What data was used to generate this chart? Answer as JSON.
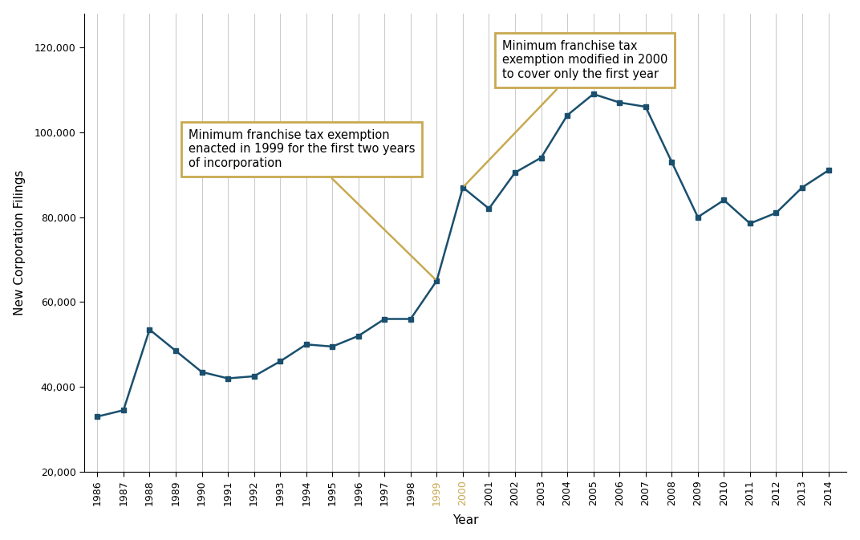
{
  "years": [
    1986,
    1987,
    1988,
    1989,
    1990,
    1991,
    1992,
    1993,
    1994,
    1995,
    1996,
    1997,
    1998,
    1999,
    2000,
    2001,
    2002,
    2003,
    2004,
    2005,
    2006,
    2007,
    2008,
    2009,
    2010,
    2011,
    2012,
    2013,
    2014
  ],
  "values": [
    33000,
    34500,
    53500,
    48500,
    43500,
    42000,
    42500,
    46000,
    50000,
    49500,
    52000,
    56000,
    56000,
    65000,
    87000,
    82000,
    90500,
    94000,
    104000,
    109000,
    107000,
    106000,
    93000,
    80000,
    84000,
    78500,
    81000,
    87000,
    91000
  ],
  "line_color": "#1a4f6e",
  "marker": "s",
  "marker_size": 4,
  "line_width": 1.8,
  "xlabel": "Year",
  "ylabel": "New Corporation Filings",
  "ylim_min": 20000,
  "ylim_max": 128000,
  "yticks": [
    20000,
    40000,
    60000,
    80000,
    100000,
    120000
  ],
  "background_color": "#ffffff",
  "grid_color": "#cccccc",
  "annotation1_text": "Minimum franchise tax exemption\nenacted in 1999 for the first two years\nof incorporation",
  "annotation2_text": "Minimum franchise tax\nexemption modified in 2000\nto cover only the first year",
  "box_color": "#c8a951",
  "box_bg": "#ffffff",
  "highlight_color": "#c8a951"
}
